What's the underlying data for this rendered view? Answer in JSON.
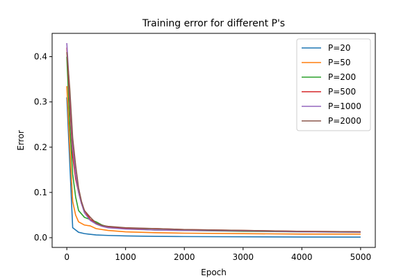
{
  "chart_data": {
    "type": "line",
    "title": "Training error for different P's",
    "xlabel": "Epoch",
    "ylabel": "Error",
    "xlim": [
      -250,
      5250
    ],
    "ylim": [
      -0.0215,
      0.4515
    ],
    "xticks": [
      0,
      1000,
      2000,
      3000,
      4000,
      5000
    ],
    "xtick_labels": [
      "0",
      "1000",
      "2000",
      "3000",
      "4000",
      "5000"
    ],
    "yticks": [
      0.0,
      0.1,
      0.2,
      0.3,
      0.4
    ],
    "ytick_labels": [
      "0.0",
      "0.1",
      "0.2",
      "0.3",
      "0.4"
    ],
    "grid": false,
    "legend_position": "top-right",
    "series": [
      {
        "name": "P=20",
        "color": "#1f77b4",
        "x": [
          0,
          100,
          200,
          300,
          500,
          700,
          1000,
          1500,
          2000,
          3000,
          4000,
          5000
        ],
        "y": [
          0.31,
          0.022,
          0.012,
          0.009,
          0.006,
          0.005,
          0.004,
          0.003,
          0.0025,
          0.002,
          0.0015,
          0.0012
        ]
      },
      {
        "name": "P=50",
        "color": "#ff7f0e",
        "x": [
          0,
          50,
          100,
          150,
          200,
          300,
          400,
          500,
          700,
          1000,
          1500,
          2000,
          3000,
          4000,
          5000
        ],
        "y": [
          0.335,
          0.2,
          0.08,
          0.05,
          0.035,
          0.028,
          0.026,
          0.02,
          0.016,
          0.013,
          0.011,
          0.01,
          0.009,
          0.008,
          0.008
        ]
      },
      {
        "name": "P=200",
        "color": "#2ca02c",
        "x": [
          0,
          50,
          100,
          150,
          200,
          300,
          400,
          500,
          600,
          700,
          1000,
          1500,
          2000,
          3000,
          4000,
          5000
        ],
        "y": [
          0.4,
          0.25,
          0.14,
          0.09,
          0.06,
          0.045,
          0.04,
          0.035,
          0.028,
          0.024,
          0.02,
          0.017,
          0.016,
          0.014,
          0.013,
          0.012
        ]
      },
      {
        "name": "P=500",
        "color": "#d62728",
        "x": [
          0,
          50,
          100,
          150,
          200,
          250,
          300,
          400,
          500,
          600,
          700,
          1000,
          1500,
          2000,
          3000,
          4000,
          5000
        ],
        "y": [
          0.42,
          0.3,
          0.18,
          0.13,
          0.1,
          0.075,
          0.06,
          0.04,
          0.032,
          0.027,
          0.024,
          0.021,
          0.02,
          0.018,
          0.016,
          0.014,
          0.013
        ]
      },
      {
        "name": "P=1000",
        "color": "#9467bd",
        "x": [
          0,
          50,
          100,
          150,
          200,
          250,
          300,
          400,
          500,
          600,
          700,
          1000,
          1500,
          2000,
          3000,
          4000,
          5000
        ],
        "y": [
          0.43,
          0.32,
          0.2,
          0.14,
          0.1,
          0.075,
          0.055,
          0.038,
          0.03,
          0.025,
          0.022,
          0.019,
          0.017,
          0.016,
          0.015,
          0.013,
          0.012
        ]
      },
      {
        "name": "P=2000",
        "color": "#8c564b",
        "x": [
          0,
          50,
          100,
          150,
          200,
          250,
          300,
          400,
          500,
          600,
          700,
          1000,
          1500,
          2000,
          3000,
          4000,
          5000
        ],
        "y": [
          0.41,
          0.33,
          0.22,
          0.16,
          0.11,
          0.08,
          0.06,
          0.045,
          0.032,
          0.027,
          0.025,
          0.022,
          0.02,
          0.018,
          0.016,
          0.014,
          0.013
        ]
      }
    ]
  }
}
